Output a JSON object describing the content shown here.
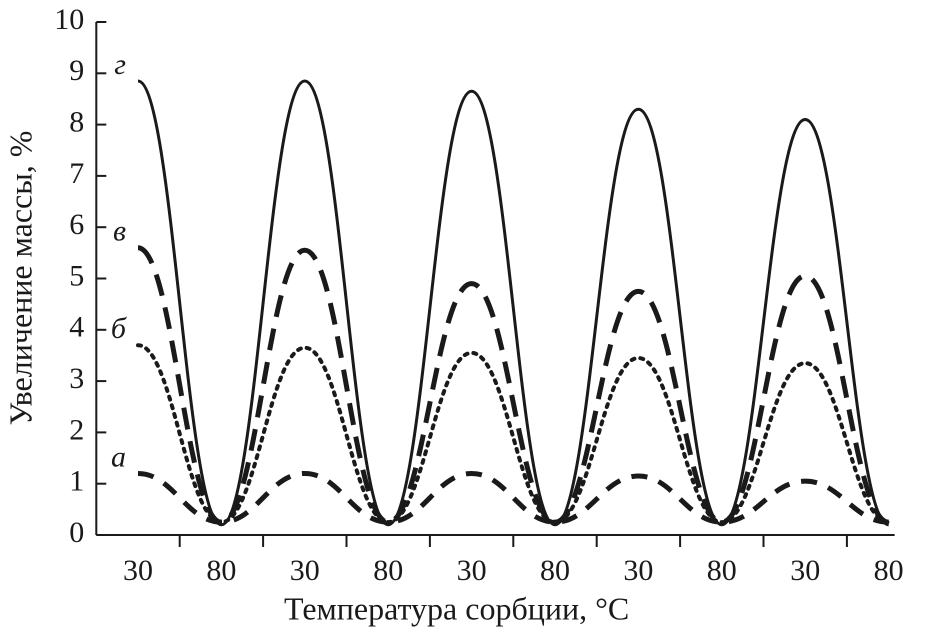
{
  "chart_data": {
    "type": "line",
    "x_label": "Температура сорбции, °C",
    "y_label": "Увеличение массы, %",
    "categories": [
      "30",
      "80",
      "30",
      "80",
      "30",
      "80",
      "30",
      "80",
      "30",
      "80"
    ],
    "ylim": [
      0,
      10
    ],
    "yticks": [
      0,
      1,
      2,
      3,
      4,
      5,
      6,
      7,
      8,
      9,
      10
    ],
    "series": [
      {
        "name": "г",
        "color": "#1a1a1a",
        "dash": "solid",
        "values": [
          8.85,
          0.2,
          8.85,
          0.2,
          8.65,
          0.2,
          8.3,
          0.2,
          8.1,
          0.2
        ]
      },
      {
        "name": "в",
        "color": "#1a1a1a",
        "dash": "dashed",
        "values": [
          5.6,
          0.25,
          5.55,
          0.25,
          4.9,
          0.25,
          4.75,
          0.25,
          5.05,
          0.25
        ]
      },
      {
        "name": "б",
        "color": "#1a1a1a",
        "dash": "dotted",
        "values": [
          3.7,
          0.25,
          3.65,
          0.25,
          3.55,
          0.25,
          3.45,
          0.25,
          3.35,
          0.25
        ]
      },
      {
        "name": "а",
        "color": "#1a1a1a",
        "dash": "dashed-short",
        "values": [
          1.2,
          0.25,
          1.2,
          0.25,
          1.2,
          0.25,
          1.15,
          0.25,
          1.05,
          0.25
        ]
      }
    ]
  }
}
